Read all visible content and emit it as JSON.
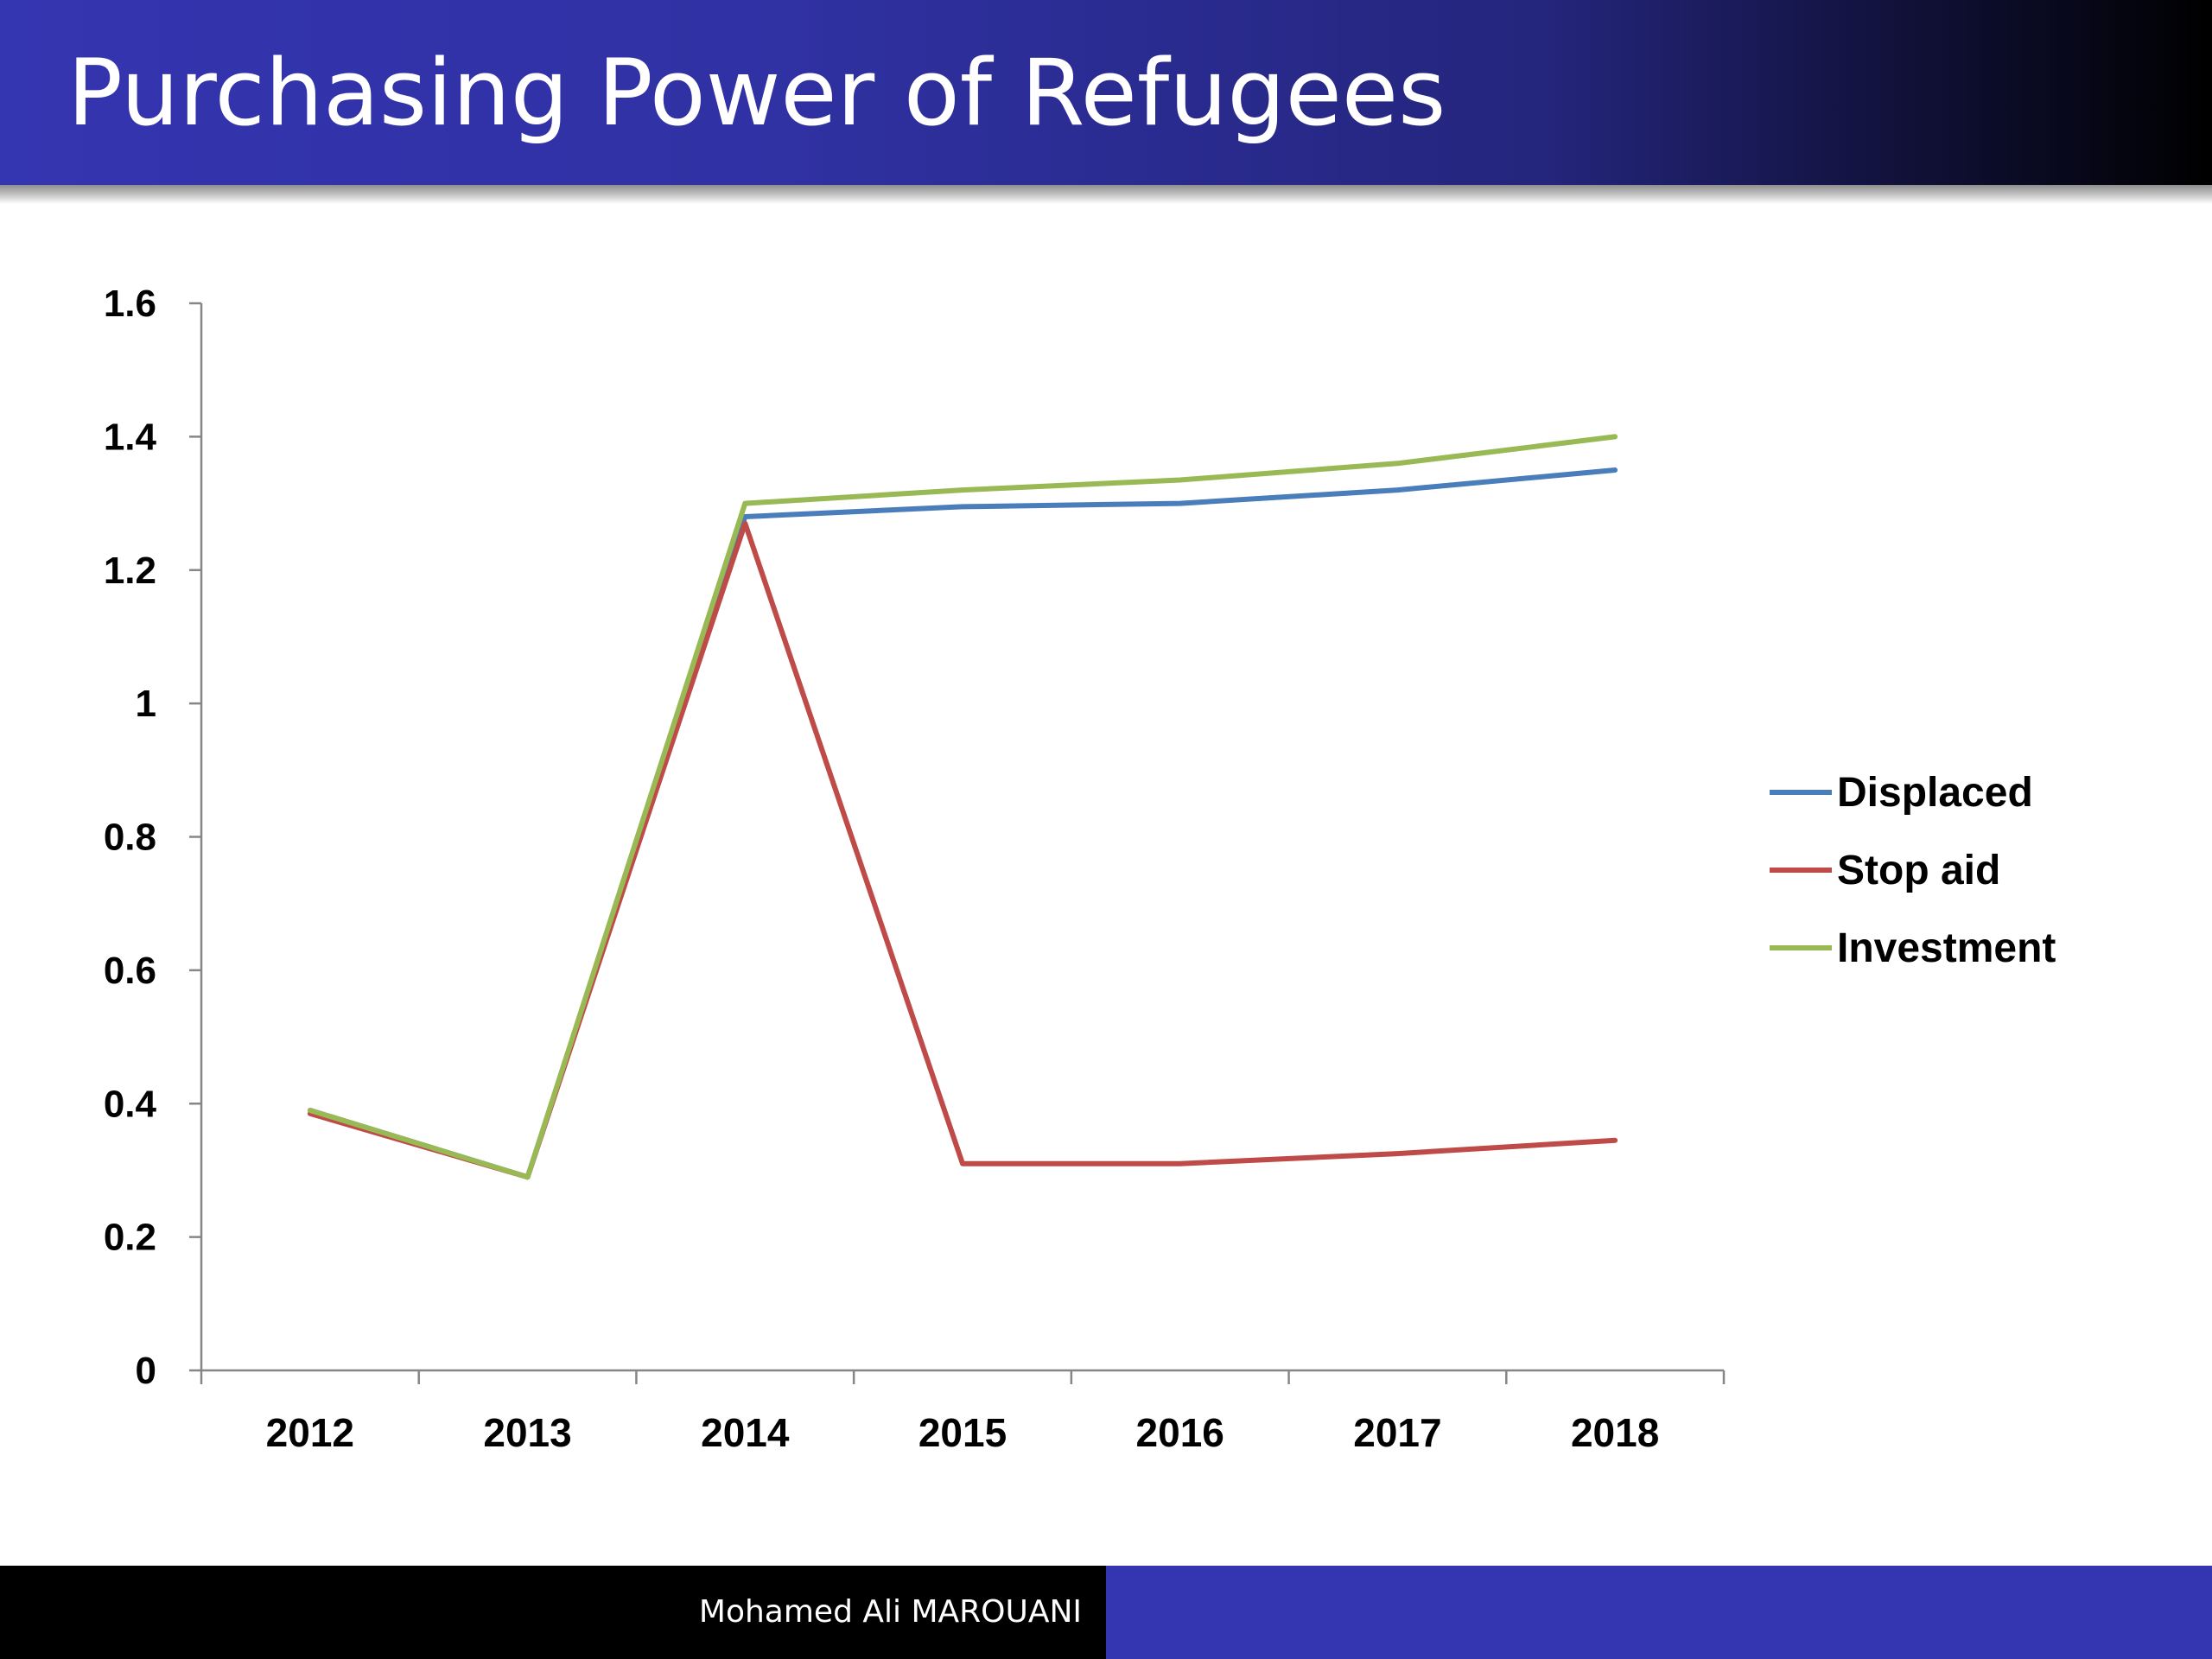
{
  "slide": {
    "title": "Purchasing Power of Refugees",
    "footer_author": "Mohamed Ali MAROUANI"
  },
  "colors": {
    "title_bar": "#3435b0",
    "footer_left": "#000000",
    "footer_right": "#3435b0"
  },
  "chart_data": {
    "type": "line",
    "title": "",
    "xlabel": "",
    "ylabel": "",
    "categories": [
      "2012",
      "2013",
      "2014",
      "2015",
      "2016",
      "2017",
      "2018"
    ],
    "ylim": [
      0,
      1.6
    ],
    "yticks": [
      0,
      0.2,
      0.4,
      0.6,
      0.8,
      1,
      1.2,
      1.4,
      1.6
    ],
    "ytick_labels": [
      "0",
      "0.2",
      "0.4",
      "0.6",
      "0.8",
      "1",
      "1.2",
      "1.4",
      "1.6"
    ],
    "grid": false,
    "legend_position": "right",
    "series": [
      {
        "name": "Displaced",
        "color": "#4a7ebb",
        "values": [
          0.39,
          0.29,
          1.28,
          1.295,
          1.3,
          1.32,
          1.35
        ]
      },
      {
        "name": "Stop aid",
        "color": "#be4b48",
        "values": [
          0.385,
          0.29,
          1.27,
          0.31,
          0.31,
          0.325,
          0.345
        ]
      },
      {
        "name": "Investment",
        "color": "#98b954",
        "values": [
          0.39,
          0.29,
          1.3,
          1.32,
          1.335,
          1.36,
          1.4
        ]
      }
    ]
  }
}
